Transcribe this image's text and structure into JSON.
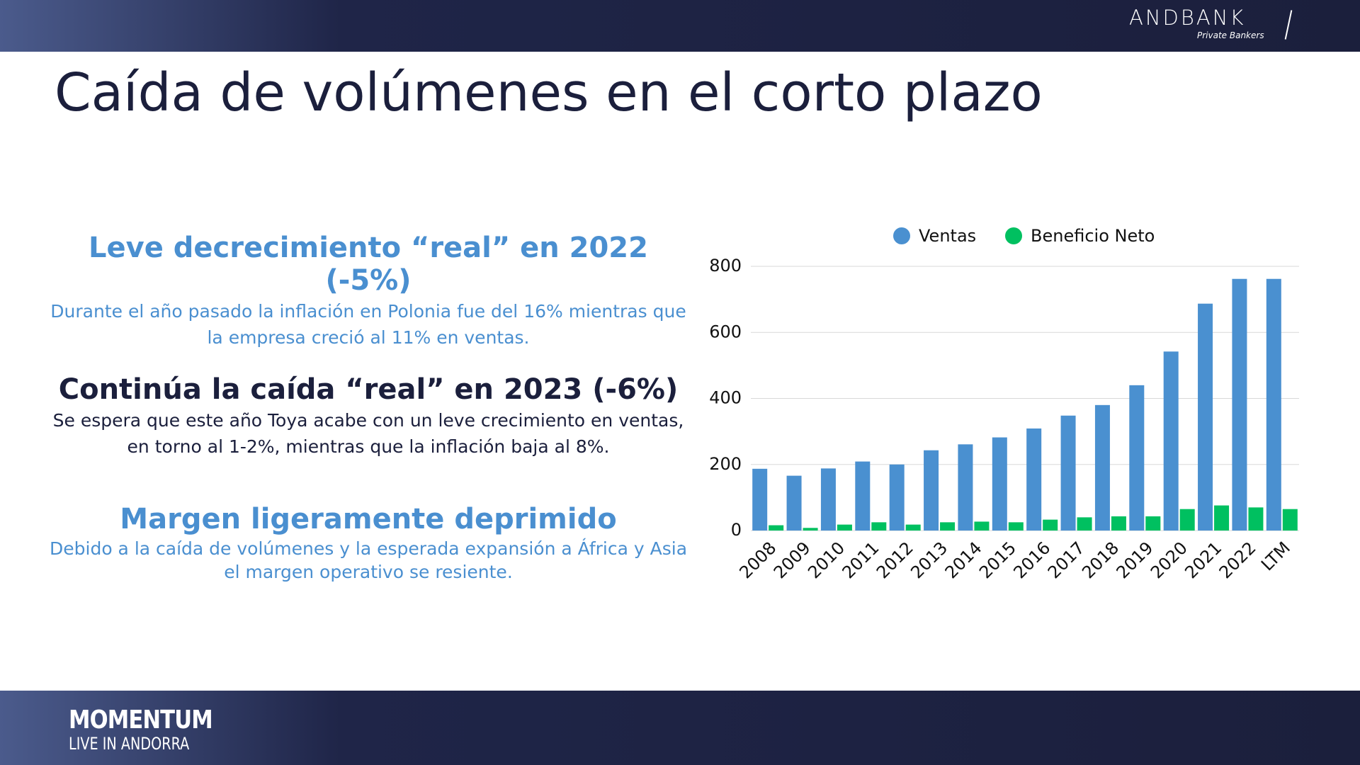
{
  "header": {
    "logo": "ANDBANK",
    "logo_subtitle": "Private Bankers"
  },
  "title": "Caída de volúmenes en el corto plazo",
  "sections": [
    {
      "heading": "Leve decrecimiento “real” en 2022 (-5%)",
      "text": "Durante el año pasado la inflación en Polonia fue del 16% mientras que la empresa creció al 11% en ventas."
    },
    {
      "heading": "Continúa la caída “real” en 2023 (-6%)",
      "text": "Se espera que este año Toya acabe con un leve crecimiento en ventas, en torno al 1-2%, mientras que la inflación baja al 8%."
    },
    {
      "heading": "Margen ligeramente deprimido",
      "text": "Debido a la caída de volúmenes y la esperada expansión a África y Asia el margen operativo se resiente."
    }
  ],
  "footer": {
    "brand": "MOMENTUM",
    "tagline": "LIVE IN ANDORRA"
  },
  "chart_data": {
    "type": "bar",
    "categories": [
      "2008",
      "2009",
      "2010",
      "2011",
      "2012",
      "2013",
      "2014",
      "2015",
      "2016",
      "2017",
      "2018",
      "2019",
      "2020",
      "2021",
      "2022",
      "LTM"
    ],
    "series": [
      {
        "name": "Ventas",
        "color": "#4a90d0",
        "values": [
          187,
          166,
          188,
          209,
          200,
          243,
          261,
          282,
          309,
          348,
          380,
          440,
          542,
          687,
          762,
          762
        ]
      },
      {
        "name": "Beneficio Neto",
        "color": "#00c060",
        "values": [
          16,
          8,
          18,
          25,
          18,
          25,
          27,
          25,
          33,
          40,
          43,
          43,
          65,
          76,
          70,
          65
        ]
      }
    ],
    "ylim": [
      0,
      800
    ],
    "yticks": [
      0,
      200,
      400,
      600,
      800
    ],
    "grid": true,
    "legend": "top"
  }
}
